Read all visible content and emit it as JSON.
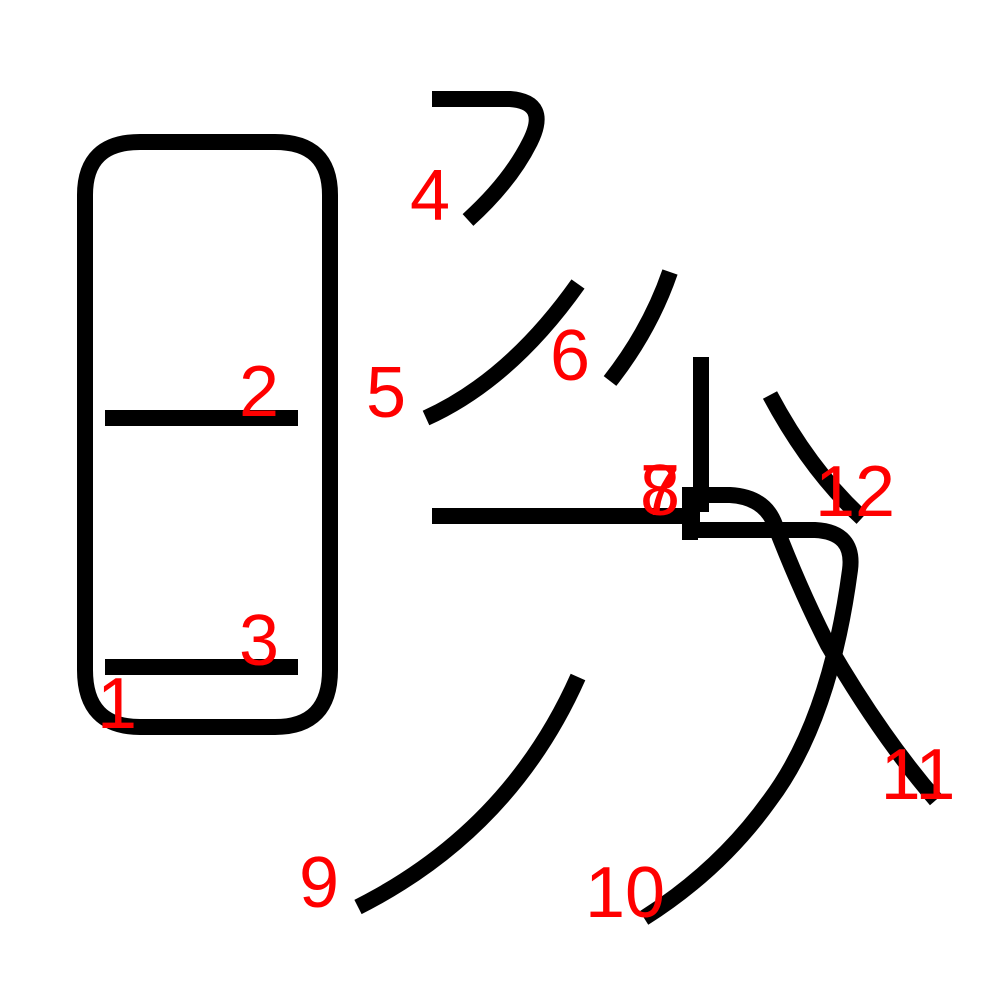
{
  "colors": {
    "stroke": "#000000",
    "number": "#ff0000",
    "background": "#ffffff"
  },
  "stroke_numbers": [
    "1",
    "2",
    "3",
    "4",
    "5",
    "6",
    "7",
    "8",
    "9",
    "10",
    "11",
    "12"
  ]
}
